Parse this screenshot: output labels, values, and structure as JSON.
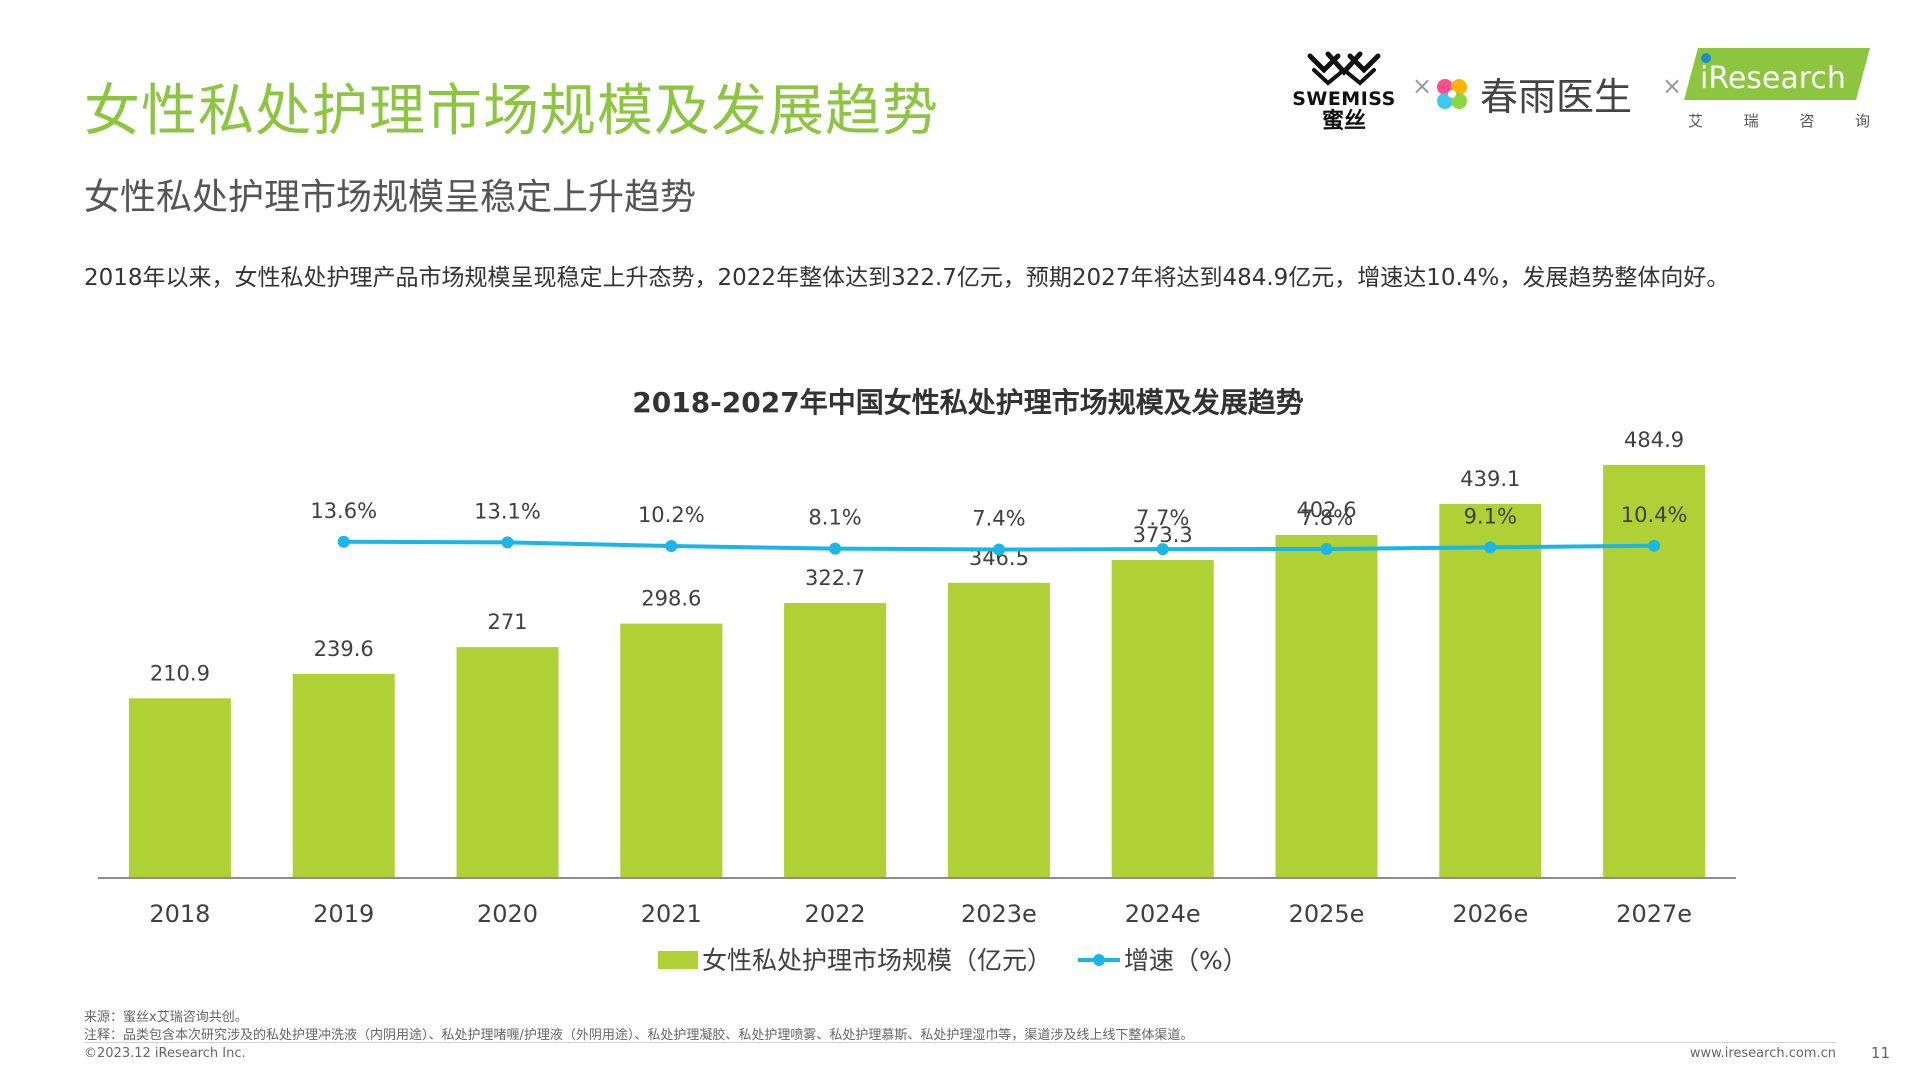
{
  "page": {
    "title": "女性私处护理市场规模及发展趋势",
    "subtitle": "女性私处护理市场规模呈稳定上升趋势",
    "description": "2018年以来，女性私处护理产品市场规模呈现稳定上升态势，2022年整体达到322.7亿元，预期2027年将达到484.9亿元，增速达10.4%，发展趋势整体向好。"
  },
  "logos": {
    "swemiss_en": "SWEMISS",
    "swemiss_cn": "蜜丝",
    "times": "×",
    "cyys": "春雨医生",
    "iresearch": "iResearch",
    "iresearch_cn": [
      "艾",
      "瑞",
      "咨",
      "询"
    ]
  },
  "chart_data": {
    "type": "bar",
    "title": "2018-2027年中国女性私处护理市场规模及发展趋势",
    "categories": [
      "2018",
      "2019",
      "2020",
      "2021",
      "2022",
      "2023e",
      "2024e",
      "2025e",
      "2026e",
      "2027e"
    ],
    "series": [
      {
        "name": "女性私处护理市场规模（亿元）",
        "type": "bar",
        "color": "#afd136",
        "values": [
          210.9,
          239.6,
          271,
          298.6,
          322.7,
          346.5,
          373.3,
          402.6,
          439.1,
          484.9
        ],
        "labels": [
          "210.9",
          "239.6",
          "271",
          "298.6",
          "322.7",
          "346.5",
          "373.3",
          "402.6",
          "439.1",
          "484.9"
        ]
      },
      {
        "name": "增速（%）",
        "type": "line",
        "color": "#1ab6e6",
        "values": [
          null,
          13.6,
          13.1,
          10.2,
          8.1,
          7.4,
          7.7,
          7.8,
          9.1,
          10.4
        ],
        "labels": [
          "",
          "13.6%",
          "13.1%",
          "10.2%",
          "8.1%",
          "7.4%",
          "7.7%",
          "7.8%",
          "9.1%",
          "10.4%"
        ]
      }
    ],
    "ylim": [
      0,
      500
    ],
    "legend": "bottom",
    "grid": false
  },
  "footer": {
    "source": "来源：蜜丝x艾瑞咨询共创。",
    "note": "注释：品类包含本次研究涉及的私处护理冲洗液（内阴用途）、私处护理啫喱/护理液（外阴用途）、私处护理凝胶、私处护理喷雾、私处护理慕斯、私处护理湿巾等，渠道涉及线上线下整体渠道。",
    "copyright": "©2023.12 iResearch Inc.",
    "website": "www.iresearch.com.cn",
    "page_number": "11"
  }
}
